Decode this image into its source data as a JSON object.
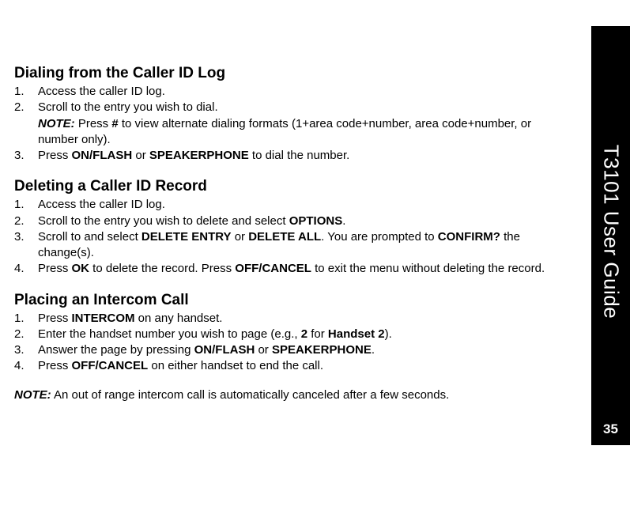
{
  "sidebar": {
    "title": "T3101 User Guide",
    "page_number": "35",
    "bg_color": "#000000",
    "text_color": "#ffffff"
  },
  "sections": [
    {
      "heading": "Dialing from the Caller ID Log",
      "items": [
        {
          "num": "1.",
          "html": "Access the caller ID log."
        },
        {
          "num": "2.",
          "html": "Scroll to the entry you wish to dial.<br><span class='bi'>NOTE:</span> Press <span class='b'>#</span> to view alternate dialing formats (1+area code+number, area code+number, or number only)."
        },
        {
          "num": "3.",
          "html": "Press <span class='b'>ON/FLASH</span> or <span class='b'>SPEAKERPHONE</span> to dial the number."
        }
      ]
    },
    {
      "heading": "Deleting a Caller ID Record",
      "items": [
        {
          "num": "1.",
          "html": "Access the caller ID log."
        },
        {
          "num": "2.",
          "html": "Scroll to the entry you wish to delete and select <span class='b'>OPTIONS</span>."
        },
        {
          "num": "3.",
          "html": "Scroll to and select <span class='b'>DELETE ENTRY</span> or <span class='b'>DELETE ALL</span>. You are prompted to <span class='b'>CONFIRM?</span> the change(s)."
        },
        {
          "num": "4.",
          "html": "Press <span class='b'>OK</span> to delete the record. Press <span class='b'>OFF/CANCEL</span> to exit the menu without deleting the record."
        }
      ]
    },
    {
      "heading": "Placing an Intercom Call",
      "items": [
        {
          "num": "1.",
          "html": "Press <span class='b'>INTERCOM</span> on any handset."
        },
        {
          "num": "2.",
          "html": "Enter the handset number you wish to page (e.g., <span class='b'>2</span> for <span class='b'>Handset 2</span>)."
        },
        {
          "num": "3.",
          "html": "Answer the page by pressing <span class='b'>ON/FLASH</span> or <span class='b'>SPEAKERPHONE</span>."
        },
        {
          "num": "4.",
          "html": "Press <span class='b'>OFF/CANCEL</span> on either handset to end the call."
        }
      ]
    }
  ],
  "footer_note": "<span class='bi'>NOTE:</span> An out of range intercom call is automatically canceled after a few seconds."
}
